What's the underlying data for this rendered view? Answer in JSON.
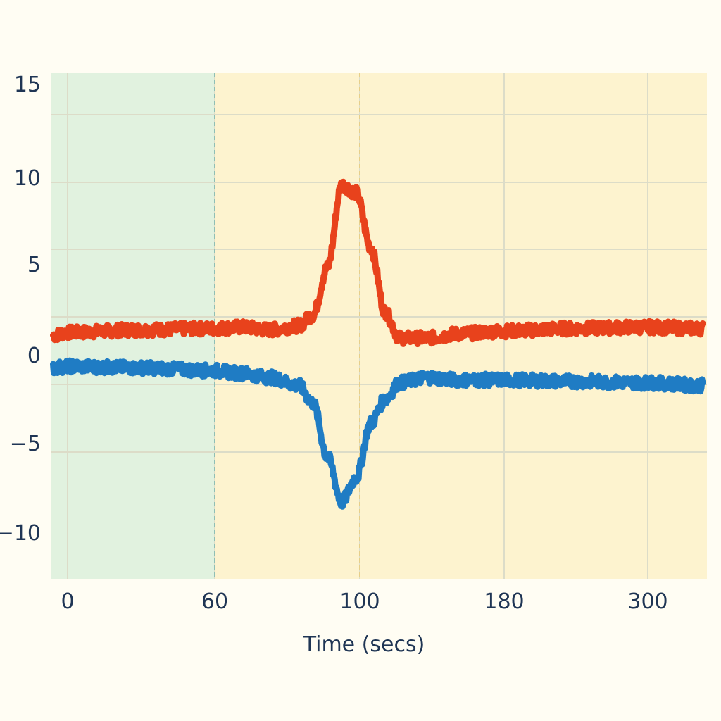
{
  "chart_data": {
    "type": "line",
    "title": "",
    "xlabel": "Time (secs)",
    "ylabel": "",
    "x_tick_labels": [
      "0",
      "60",
      "100",
      "180",
      "300"
    ],
    "y_tick_labels": [
      "15",
      "10",
      "5",
      "0",
      "−5",
      "−10"
    ],
    "y_ticks": [
      15,
      10,
      5,
      0,
      -5,
      -10
    ],
    "ylim": [
      -13.5,
      15
    ],
    "grid": true,
    "legend": "none",
    "regions": [
      {
        "label": "",
        "color": "#e1f2df",
        "x_from": "start",
        "x_to": "60"
      },
      {
        "label": "",
        "color": "#fdf3cf",
        "x_from": "60",
        "x_to": "end"
      }
    ],
    "vlines": [
      {
        "x": "60",
        "color": "#8fbfb5"
      },
      {
        "x": "100",
        "color": "#e6cf8a"
      }
    ],
    "x_positions": [
      -0.1,
      0,
      0.5,
      1,
      1.2,
      1.4,
      1.6,
      1.7,
      1.8,
      1.9,
      2.0,
      2.1,
      2.2,
      2.3,
      2.5,
      2.7,
      3,
      3.5,
      4,
      4.4
    ],
    "series": [
      {
        "name": "",
        "color": "#e8421c",
        "values": [
          1.5,
          1.7,
          1.9,
          2.0,
          2.1,
          1.9,
          2.2,
          3.0,
          6.5,
          12.6,
          12.0,
          8.0,
          3.2,
          1.3,
          1.3,
          1.6,
          1.8,
          2.0,
          2.1,
          2.0
        ]
      },
      {
        "name": "",
        "color": "#1f7cc4",
        "values": [
          -0.9,
          -0.8,
          -0.9,
          -1.1,
          -1.3,
          -1.6,
          -2.2,
          -3.5,
          -7.5,
          -10.8,
          -9.0,
          -5.0,
          -3.2,
          -2.0,
          -1.6,
          -1.8,
          -1.8,
          -1.9,
          -2.0,
          -2.2
        ]
      }
    ]
  }
}
